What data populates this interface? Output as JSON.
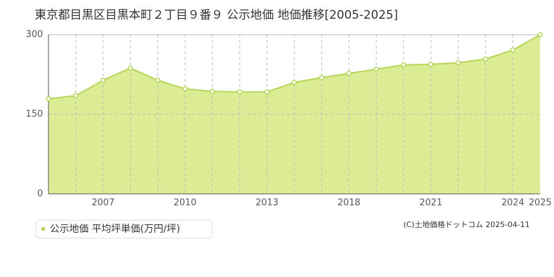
{
  "chart_data": {
    "type": "area",
    "title": "東京都目黒区目黒本町２丁目９番９ 公示地価 地価推移[2005-2025]",
    "categories": [
      null,
      null,
      "2007",
      null,
      null,
      "2010",
      null,
      null,
      "2013",
      null,
      null,
      "2018",
      null,
      null,
      "2021",
      null,
      null,
      "2024",
      "2025"
    ],
    "series": [
      {
        "name": "公示地価 平均坪単価(万円/坪)",
        "color": "#b5d65a",
        "values": [
          179,
          185,
          214,
          237,
          214,
          198,
          193,
          192,
          192,
          210,
          219,
          227,
          235,
          243,
          244,
          247,
          254,
          271,
          300
        ]
      }
    ],
    "ylim": [
      0,
      300
    ],
    "yticks": [
      0,
      150,
      300
    ],
    "grid": true,
    "credit": "(C)土地価格ドットコム 2025-04-11"
  }
}
